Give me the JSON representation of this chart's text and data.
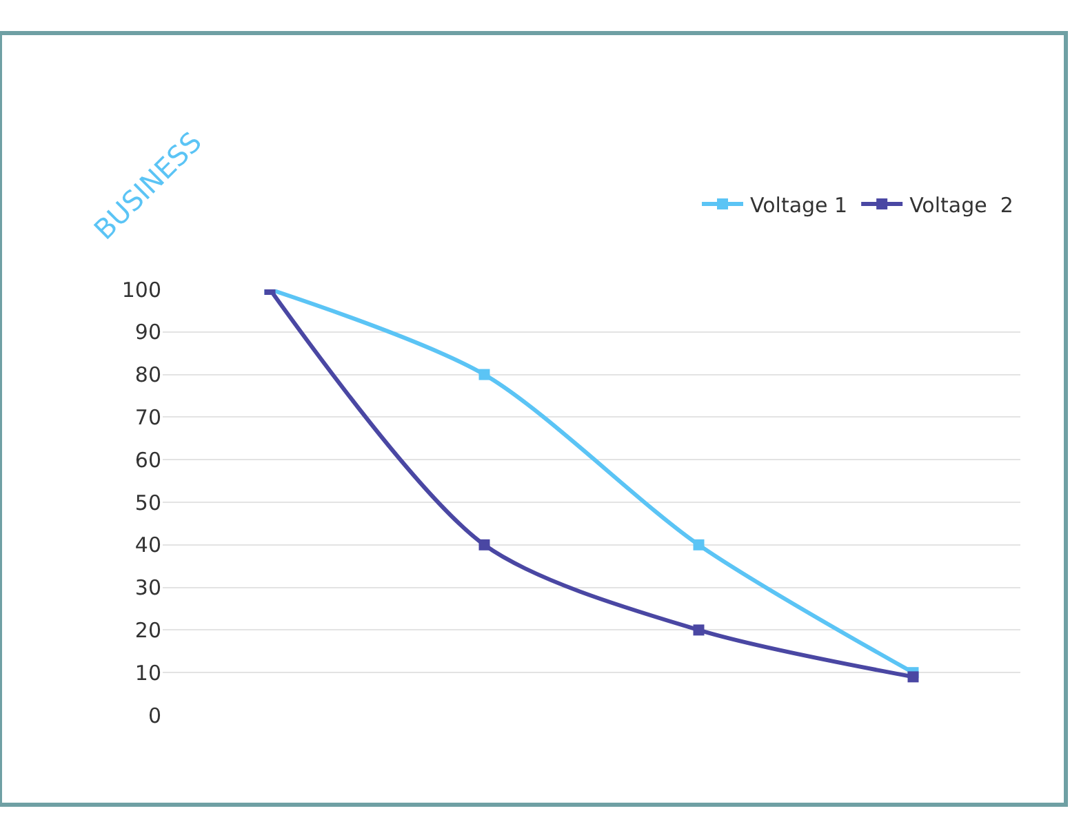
{
  "chart_data": {
    "type": "line",
    "categories": [
      null,
      null,
      null,
      null
    ],
    "series": [
      {
        "name": "Voltage 1",
        "color": "#5bc4f5",
        "values": [
          100,
          80,
          40,
          10
        ]
      },
      {
        "name": "Voltage  2",
        "color": "#4a47a3",
        "values": [
          100,
          40,
          20,
          9
        ]
      }
    ],
    "ylim": [
      0,
      100
    ],
    "yticks": [
      0,
      10,
      20,
      30,
      40,
      50,
      60,
      70,
      80,
      90,
      100
    ],
    "grid": "y",
    "legend": "top right",
    "marker": "square",
    "line_style": "solid",
    "tick_labels": "y",
    "annotations": [
      "BUSINESS"
    ]
  }
}
